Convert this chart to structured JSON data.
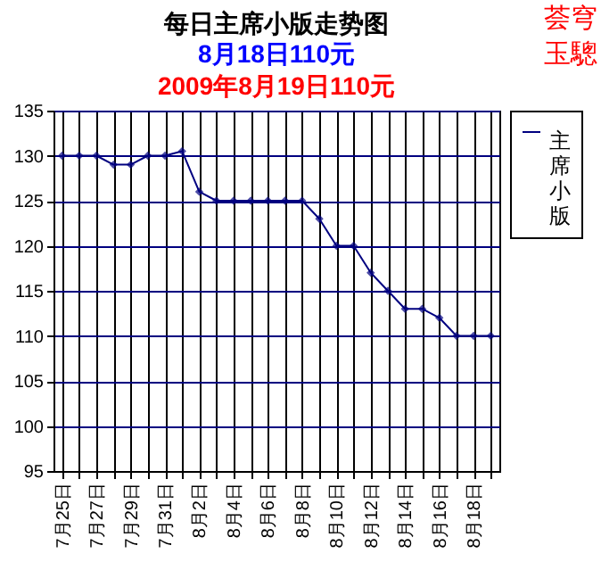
{
  "chart_data": {
    "type": "line",
    "title": "每日主席小版走势图",
    "subtitle": "8月18日110元",
    "annotations": [
      "2009年8月19日110元",
      "荟穹玉驄"
    ],
    "categories": [
      "7月25日",
      null,
      "7月27日",
      null,
      "7月29日",
      null,
      "7月31日",
      null,
      "8月2日",
      null,
      "8月4日",
      null,
      "8月6日",
      null,
      "8月8日",
      null,
      "8月10日",
      null,
      "8月12日",
      null,
      "8月14日",
      null,
      "8月16日",
      null,
      "8月18日",
      null
    ],
    "series": [
      {
        "name": "主席小版",
        "color": "#000080",
        "values": [
          130,
          130,
          130,
          129,
          129,
          130,
          130,
          130.5,
          126,
          125,
          125,
          125,
          125,
          125,
          125,
          123,
          120,
          120,
          117,
          115,
          113,
          113,
          112,
          110,
          110,
          110
        ]
      }
    ],
    "ylim": [
      95,
      135
    ],
    "yticks": [
      95,
      100,
      105,
      110,
      115,
      120,
      125,
      130,
      135
    ],
    "grid": true,
    "legend": "top right",
    "marker": "diamond",
    "line_style": "solid"
  }
}
